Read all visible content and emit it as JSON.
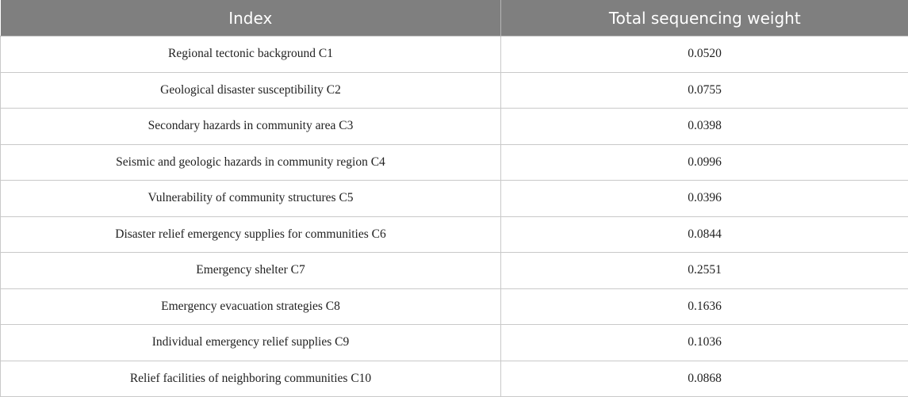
{
  "table": {
    "headers": [
      "Index",
      "Total sequencing weight"
    ],
    "rows": [
      {
        "index": "Regional tectonic background C1",
        "weight": "0.0520"
      },
      {
        "index": "Geological disaster susceptibility C2",
        "weight": "0.0755"
      },
      {
        "index": "Secondary hazards in community area C3",
        "weight": "0.0398"
      },
      {
        "index": "Seismic and geologic hazards in community region C4",
        "weight": "0.0996"
      },
      {
        "index": "Vulnerability of community structures C5",
        "weight": "0.0396"
      },
      {
        "index": "Disaster relief emergency supplies for communities C6",
        "weight": "0.0844"
      },
      {
        "index": "Emergency shelter C7",
        "weight": "0.2551"
      },
      {
        "index": "Emergency evacuation strategies C8",
        "weight": "0.1636"
      },
      {
        "index": "Individual emergency relief supplies C9",
        "weight": "0.1036"
      },
      {
        "index": "Relief facilities of neighboring communities C10",
        "weight": "0.0868"
      }
    ]
  },
  "colors": {
    "header_background": "#7f7f7f",
    "header_text": "#ffffff",
    "grid_line": "#c9c9c9"
  }
}
